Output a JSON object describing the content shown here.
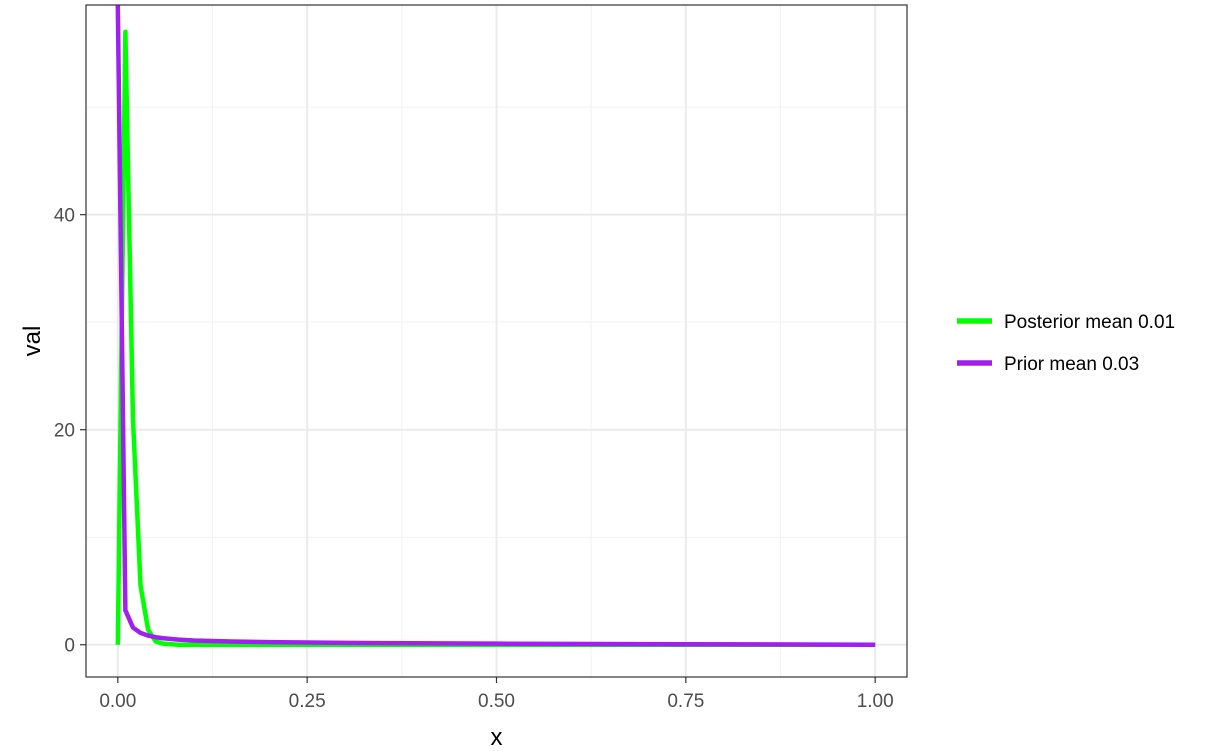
{
  "chart_data": {
    "type": "line",
    "title": "",
    "xlabel": "x",
    "ylabel": "val",
    "xlim": [
      -0.042,
      1.042
    ],
    "ylim": [
      -3.0,
      59.5
    ],
    "x_ticks": [
      0.0,
      0.25,
      0.5,
      0.75,
      1.0
    ],
    "x_tick_labels": [
      "0.00",
      "0.25",
      "0.50",
      "0.75",
      "1.00"
    ],
    "y_ticks": [
      0,
      20,
      40
    ],
    "y_tick_labels": [
      "0",
      "20",
      "40"
    ],
    "grid": true,
    "legend_position": "right",
    "series": [
      {
        "name": "Posterior mean 0.01",
        "color": "#00ff00",
        "x": [
          0.0,
          0.01,
          0.02,
          0.03,
          0.04,
          0.05,
          0.06,
          0.08,
          0.1,
          0.15,
          0.2,
          0.3,
          0.5,
          0.75,
          1.0
        ],
        "y": [
          0.0,
          57.0,
          21.0,
          5.5,
          1.4,
          0.3,
          0.1,
          0.0,
          0.0,
          0.0,
          0.0,
          0.0,
          0.0,
          0.0,
          0.0
        ]
      },
      {
        "name": "Prior mean 0.03",
        "color": "#a020f0",
        "x": [
          0.0,
          0.01,
          0.02,
          0.03,
          0.04,
          0.05,
          0.06,
          0.08,
          0.1,
          0.15,
          0.2,
          0.3,
          0.5,
          0.75,
          1.0
        ],
        "y": [
          59.5,
          3.2,
          1.6,
          1.1,
          0.85,
          0.7,
          0.6,
          0.48,
          0.4,
          0.3,
          0.24,
          0.17,
          0.1,
          0.05,
          0.0
        ]
      }
    ]
  }
}
